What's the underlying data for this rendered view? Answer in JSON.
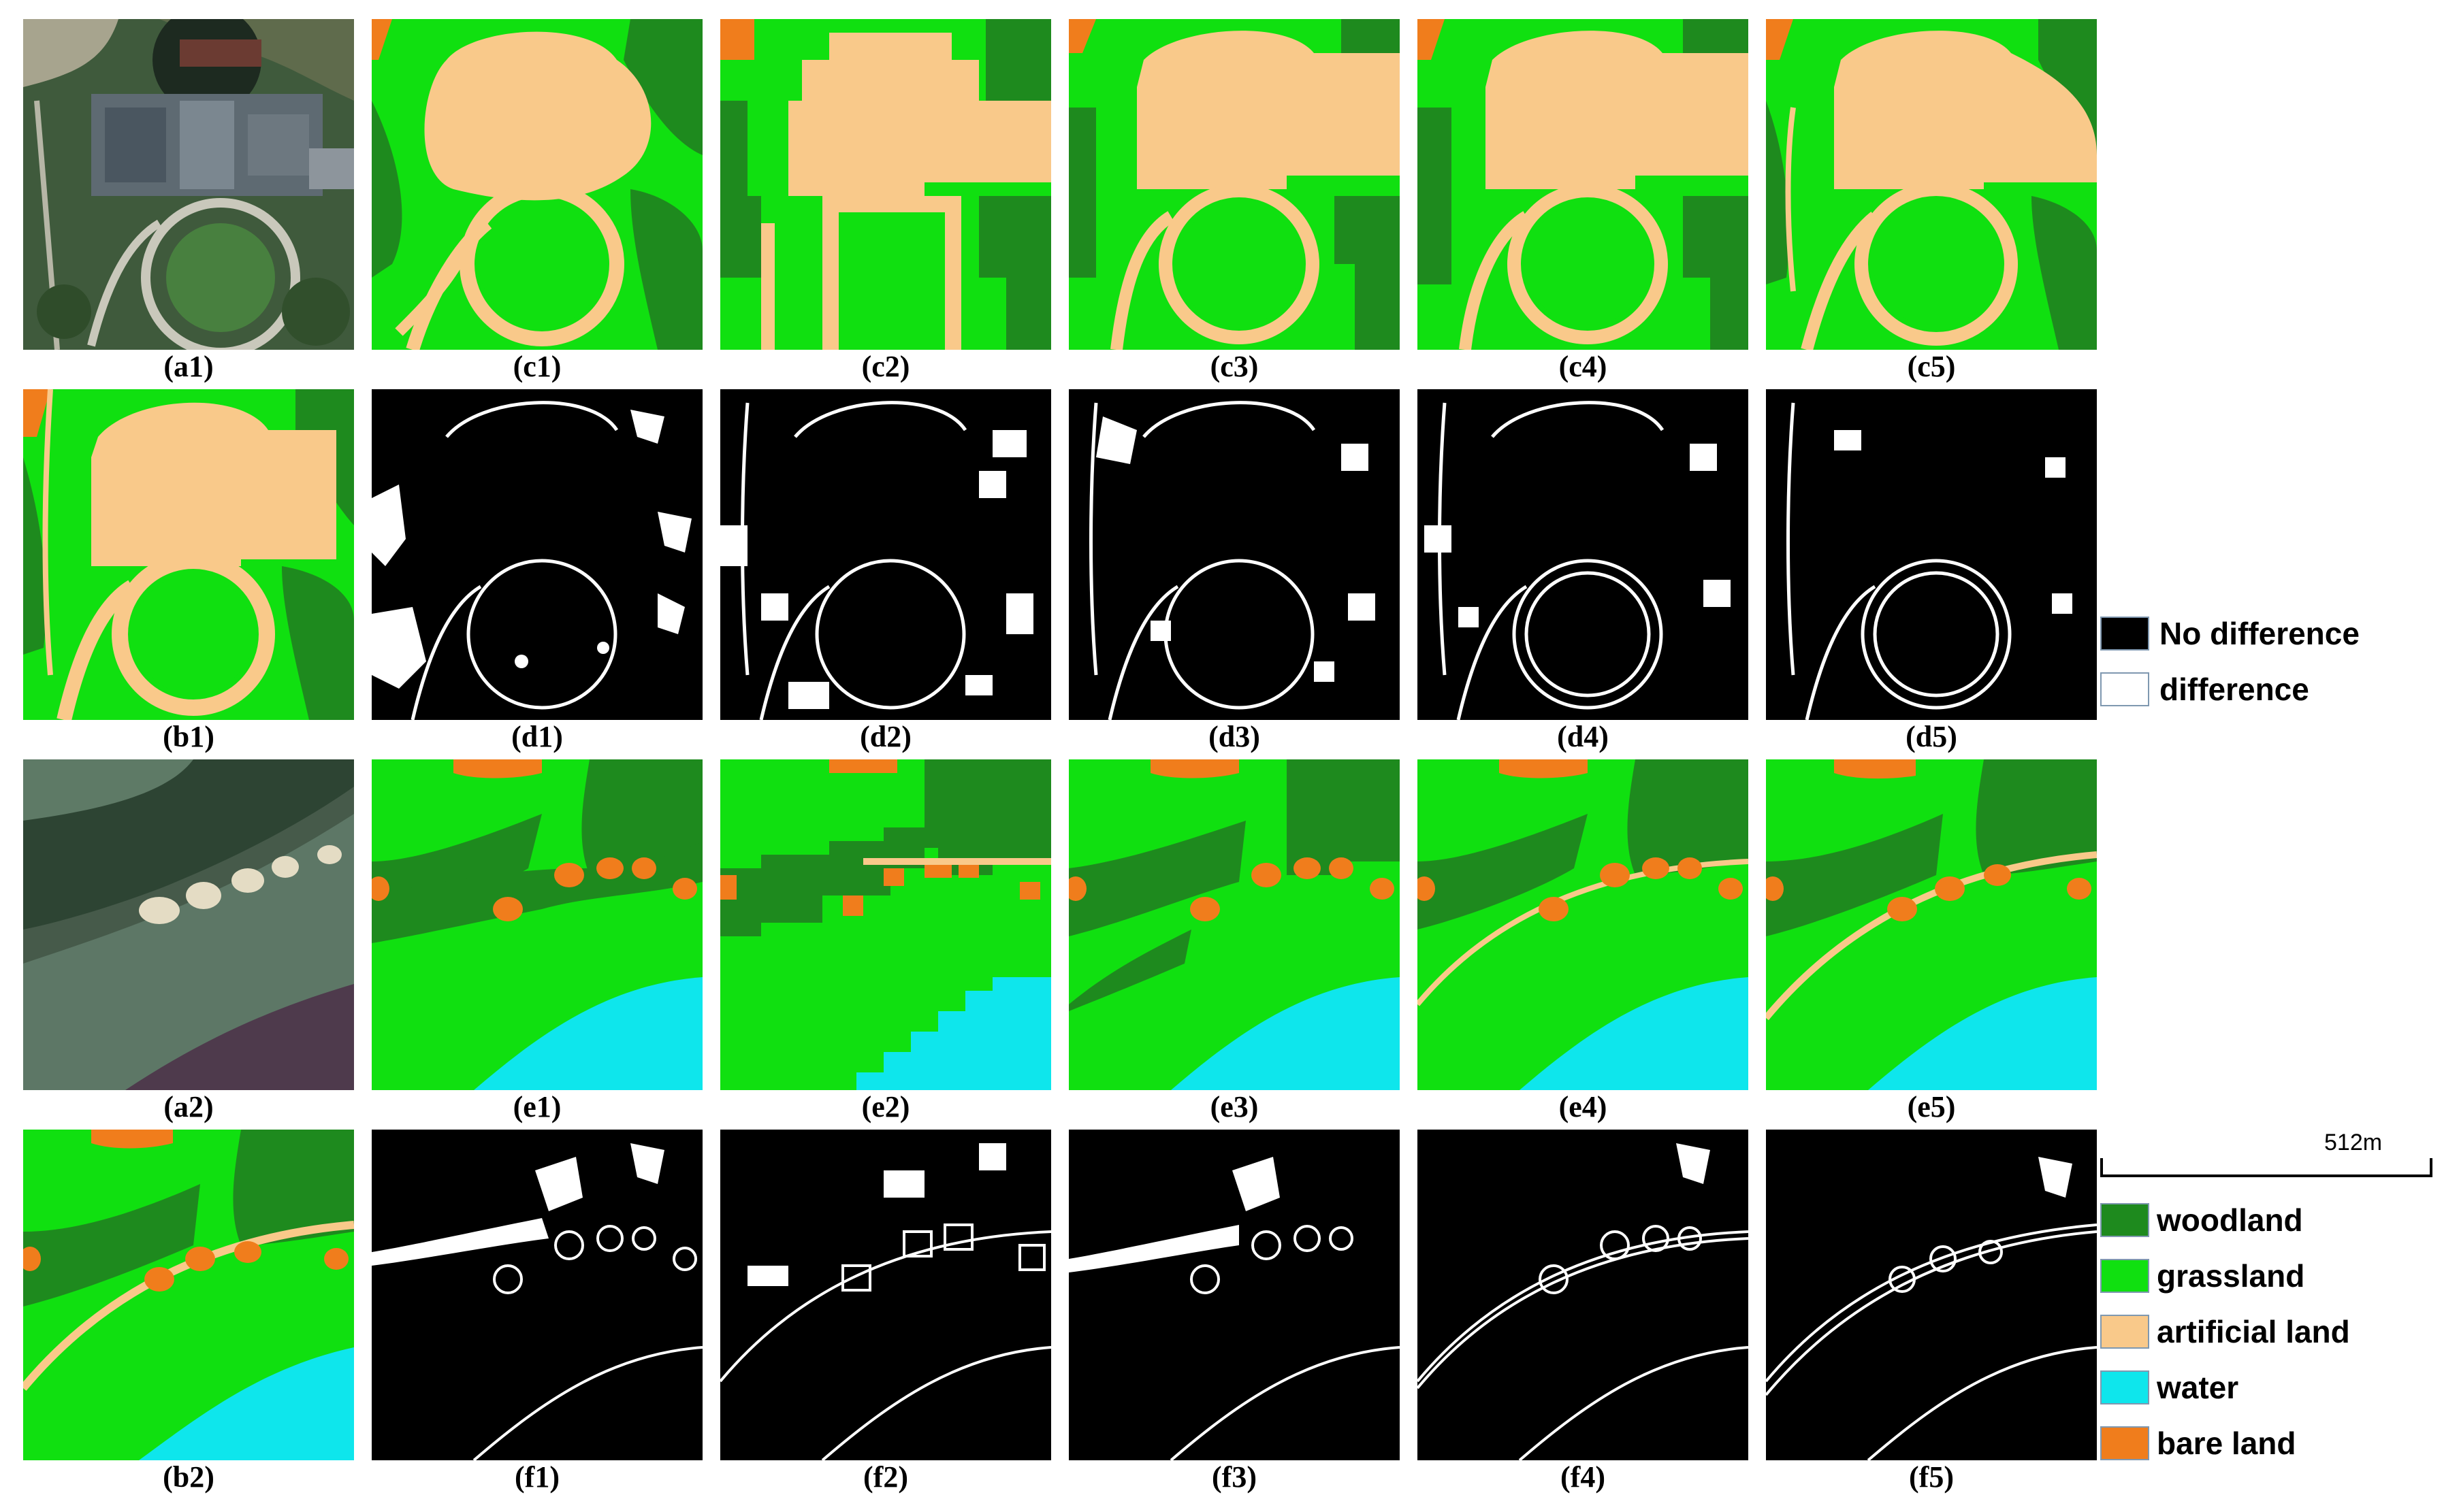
{
  "captions": {
    "a1": "(a1)",
    "c1": "(c1)",
    "c2": "(c2)",
    "c3": "(c3)",
    "c4": "(c4)",
    "c5": "(c5)",
    "b1": "(b1)",
    "d1": "(d1)",
    "d2": "(d2)",
    "d3": "(d3)",
    "d4": "(d4)",
    "d5": "(d5)",
    "a2": "(a2)",
    "e1": "(e1)",
    "e2": "(e2)",
    "e3": "(e3)",
    "e4": "(e4)",
    "e5": "(e5)",
    "b2": "(b2)",
    "f1": "(f1)",
    "f2": "(f2)",
    "f3": "(f3)",
    "f4": "(f4)",
    "f5": "(f5)"
  },
  "difference_legend": {
    "no_difference": "No difference",
    "difference": "difference"
  },
  "scale_bar": {
    "label": "512m"
  },
  "class_legend": {
    "woodland": "woodland",
    "grassland": "grassland",
    "artificial": "artificial land",
    "water": "water",
    "bare": "bare land"
  },
  "colors": {
    "woodland": "#1e8a1e",
    "grassland": "#10e010",
    "artificial": "#f9c98a",
    "water": "#0ee6ec",
    "bare": "#f07d1c",
    "no_difference": "#000000",
    "difference": "#ffffff"
  }
}
